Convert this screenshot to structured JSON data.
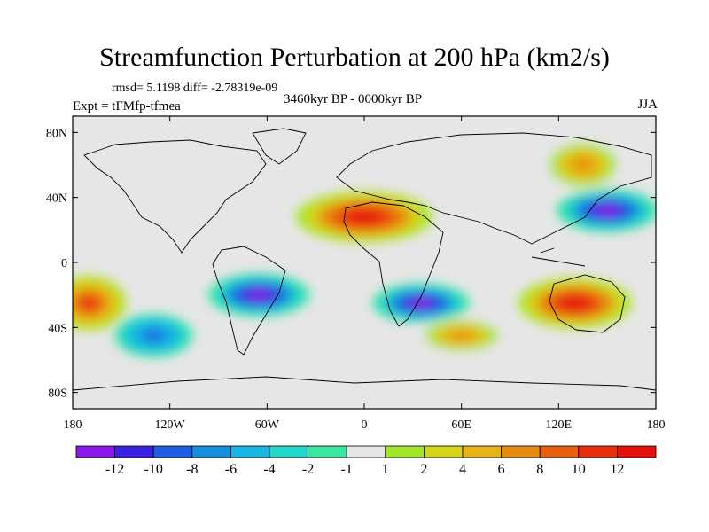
{
  "title": "Streamfunction Perturbation at 200 hPa (km2/s)",
  "stats": "rmsd= 5.1198 diff= -2.78319e-09",
  "experiment": "Expt = tFMfp-tfmea",
  "period": "3460kyr BP - 0000kyr BP",
  "season": "JJA",
  "lat_ticks": [
    "80N",
    "40N",
    "0",
    "40S",
    "80S"
  ],
  "lon_ticks": [
    "180",
    "120W",
    "60W",
    "0",
    "60E",
    "120E",
    "180"
  ],
  "colorbar": {
    "labels": [
      "-12",
      "-10",
      "-8",
      "-6",
      "-4",
      "-2",
      "-1",
      "1",
      "2",
      "4",
      "6",
      "8",
      "10",
      "12"
    ],
    "colors": [
      "#8a18e8",
      "#3a22e0",
      "#1e5ee0",
      "#1590e0",
      "#19b6e4",
      "#22d6c8",
      "#3be6a0",
      "#e6e6e6",
      "#a2e62a",
      "#d6d41a",
      "#e6b414",
      "#e68a10",
      "#e8600e",
      "#e8300c",
      "#e8100c"
    ]
  },
  "chart_data": {
    "type": "heatmap",
    "title": "Streamfunction Perturbation at 200 hPa (km2/s)",
    "units": "km2/s",
    "lon_range": [
      -180,
      180
    ],
    "lat_range": [
      -90,
      90
    ],
    "contour_levels": [
      -12,
      -10,
      -8,
      -6,
      -4,
      -2,
      -1,
      1,
      2,
      4,
      6,
      8,
      10,
      12
    ],
    "features": [
      {
        "region": "North Africa / Mediterranean",
        "lon": 0,
        "lat": 28,
        "value": 12
      },
      {
        "region": "East Asia / NW Pacific",
        "lon": 150,
        "lat": 32,
        "value": -12
      },
      {
        "region": "North Pacific",
        "lon": 135,
        "lat": 60,
        "value": 6
      },
      {
        "region": "South America",
        "lon": -65,
        "lat": -20,
        "value": -12
      },
      {
        "region": "Southern Africa",
        "lon": 35,
        "lat": -25,
        "value": -12
      },
      {
        "region": "Australia",
        "lon": 130,
        "lat": -25,
        "value": 12
      },
      {
        "region": "Eastern South Pacific",
        "lon": -170,
        "lat": -25,
        "value": 10
      },
      {
        "region": "South Pacific mid-latitude",
        "lon": -130,
        "lat": -45,
        "value": -8
      },
      {
        "region": "South Indian Ocean",
        "lon": 60,
        "lat": -45,
        "value": 6
      }
    ]
  }
}
